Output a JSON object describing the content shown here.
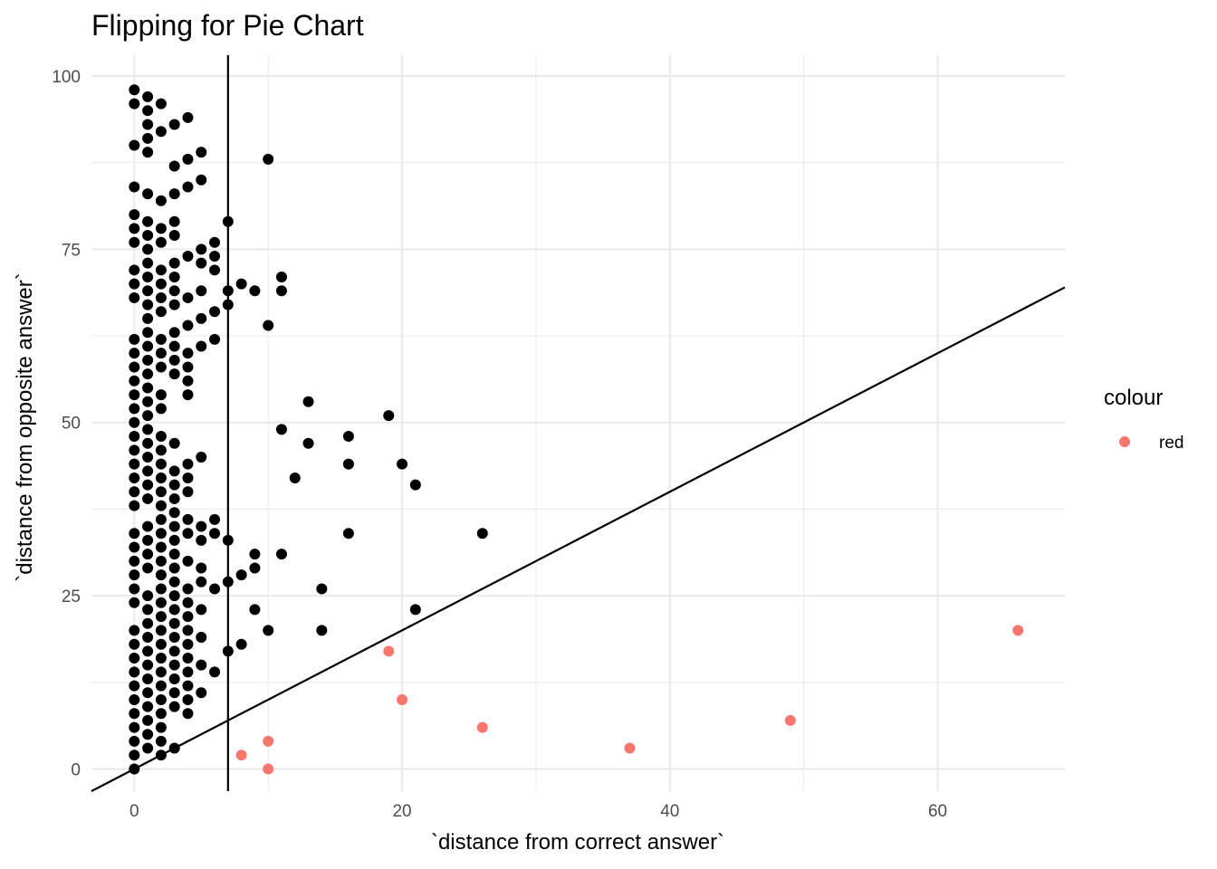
{
  "chart_data": {
    "type": "scatter",
    "title": "Flipping for Pie Chart",
    "xlabel": "`distance from correct answer`",
    "ylabel": "`distance from opposite answer`",
    "xlim": [
      -3.2,
      69.5
    ],
    "ylim": [
      -3.2,
      103
    ],
    "x_ticks": [
      0,
      20,
      40,
      60
    ],
    "x_tick_labels": [
      "0",
      "20",
      "40",
      "60"
    ],
    "x_minor_ticks": [
      10,
      30,
      50
    ],
    "y_ticks": [
      0,
      25,
      50,
      75,
      100
    ],
    "y_tick_labels": [
      "0",
      "25",
      "50",
      "75",
      "100"
    ],
    "y_minor_ticks": [
      12.5,
      37.5,
      62.5,
      87.5
    ],
    "grid": true,
    "legend": {
      "title": "colour",
      "position": "right",
      "entries": [
        {
          "label": "red",
          "color": "#F8766D"
        }
      ]
    },
    "reference_lines": {
      "vertical_x": 7,
      "diagonal": {
        "intercept": 0,
        "slope": 1
      }
    },
    "colors": {
      "points": "#000000",
      "highlight": "#F8766D",
      "grid": "#EBEBEB"
    },
    "point_columns": [
      {
        "x": 0,
        "y": [
          0,
          2,
          4,
          6,
          8,
          10,
          12,
          14,
          16,
          18,
          20,
          24,
          26,
          28,
          30,
          32,
          34,
          38,
          40,
          42,
          44,
          46,
          48,
          50,
          52,
          54,
          56,
          58,
          60,
          62,
          68,
          70,
          72,
          76,
          78,
          80,
          84,
          90,
          96,
          98
        ]
      },
      {
        "x": 1,
        "y": [
          3,
          5,
          7,
          9,
          11,
          13,
          15,
          17,
          19,
          21,
          23,
          25,
          29,
          31,
          33,
          35,
          39,
          41,
          43,
          45,
          47,
          49,
          51,
          53,
          55,
          57,
          59,
          61,
          63,
          65,
          67,
          69,
          71,
          73,
          75,
          77,
          79,
          83,
          89,
          91,
          93,
          95,
          97
        ]
      },
      {
        "x": 2,
        "y": [
          2,
          4,
          6,
          8,
          10,
          12,
          14,
          16,
          18,
          20,
          22,
          24,
          26,
          28,
          30,
          32,
          34,
          36,
          38,
          40,
          42,
          44,
          46,
          48,
          52,
          54,
          58,
          60,
          62,
          66,
          68,
          70,
          72,
          76,
          78,
          82,
          92,
          96
        ]
      },
      {
        "x": 3,
        "y": [
          3,
          9,
          11,
          13,
          15,
          17,
          19,
          21,
          23,
          25,
          27,
          29,
          31,
          33,
          35,
          37,
          39,
          41,
          43,
          47,
          57,
          59,
          61,
          63,
          67,
          69,
          71,
          73,
          77,
          79,
          83,
          87,
          93
        ]
      },
      {
        "x": 4,
        "y": [
          8,
          10,
          12,
          14,
          16,
          18,
          20,
          22,
          24,
          26,
          30,
          34,
          36,
          40,
          42,
          44,
          54,
          56,
          58,
          60,
          64,
          68,
          74,
          84,
          88,
          94
        ]
      },
      {
        "x": 5,
        "y": [
          11,
          15,
          19,
          23,
          27,
          29,
          33,
          35,
          45,
          61,
          65,
          69,
          73,
          75,
          85,
          89
        ]
      },
      {
        "x": 6,
        "y": [
          14,
          26,
          34,
          36,
          62,
          66,
          72,
          74,
          76
        ]
      },
      {
        "x": 7,
        "y": [
          17,
          27,
          33,
          67,
          69,
          79
        ]
      },
      {
        "x": 8,
        "y": [
          18,
          28,
          70
        ]
      },
      {
        "x": 9,
        "y": [
          23,
          29,
          31,
          69
        ]
      },
      {
        "x": 10,
        "y": [
          20,
          64,
          88
        ]
      },
      {
        "x": 11,
        "y": [
          31,
          49,
          69,
          71
        ]
      },
      {
        "x": 12,
        "y": [
          42
        ]
      },
      {
        "x": 13,
        "y": [
          47,
          53
        ]
      },
      {
        "x": 14,
        "y": [
          20,
          26
        ]
      },
      {
        "x": 16,
        "y": [
          34,
          44,
          48
        ]
      },
      {
        "x": 19,
        "y": [
          51
        ]
      },
      {
        "x": 20,
        "y": [
          44
        ]
      },
      {
        "x": 21,
        "y": [
          23,
          41
        ]
      },
      {
        "x": 26,
        "y": [
          34
        ]
      }
    ],
    "red_points": [
      {
        "x": 8,
        "y": 2
      },
      {
        "x": 10,
        "y": 0
      },
      {
        "x": 10,
        "y": 4
      },
      {
        "x": 19,
        "y": 17
      },
      {
        "x": 20,
        "y": 10
      },
      {
        "x": 26,
        "y": 6
      },
      {
        "x": 37,
        "y": 3
      },
      {
        "x": 49,
        "y": 7
      },
      {
        "x": 66,
        "y": 20
      }
    ]
  }
}
